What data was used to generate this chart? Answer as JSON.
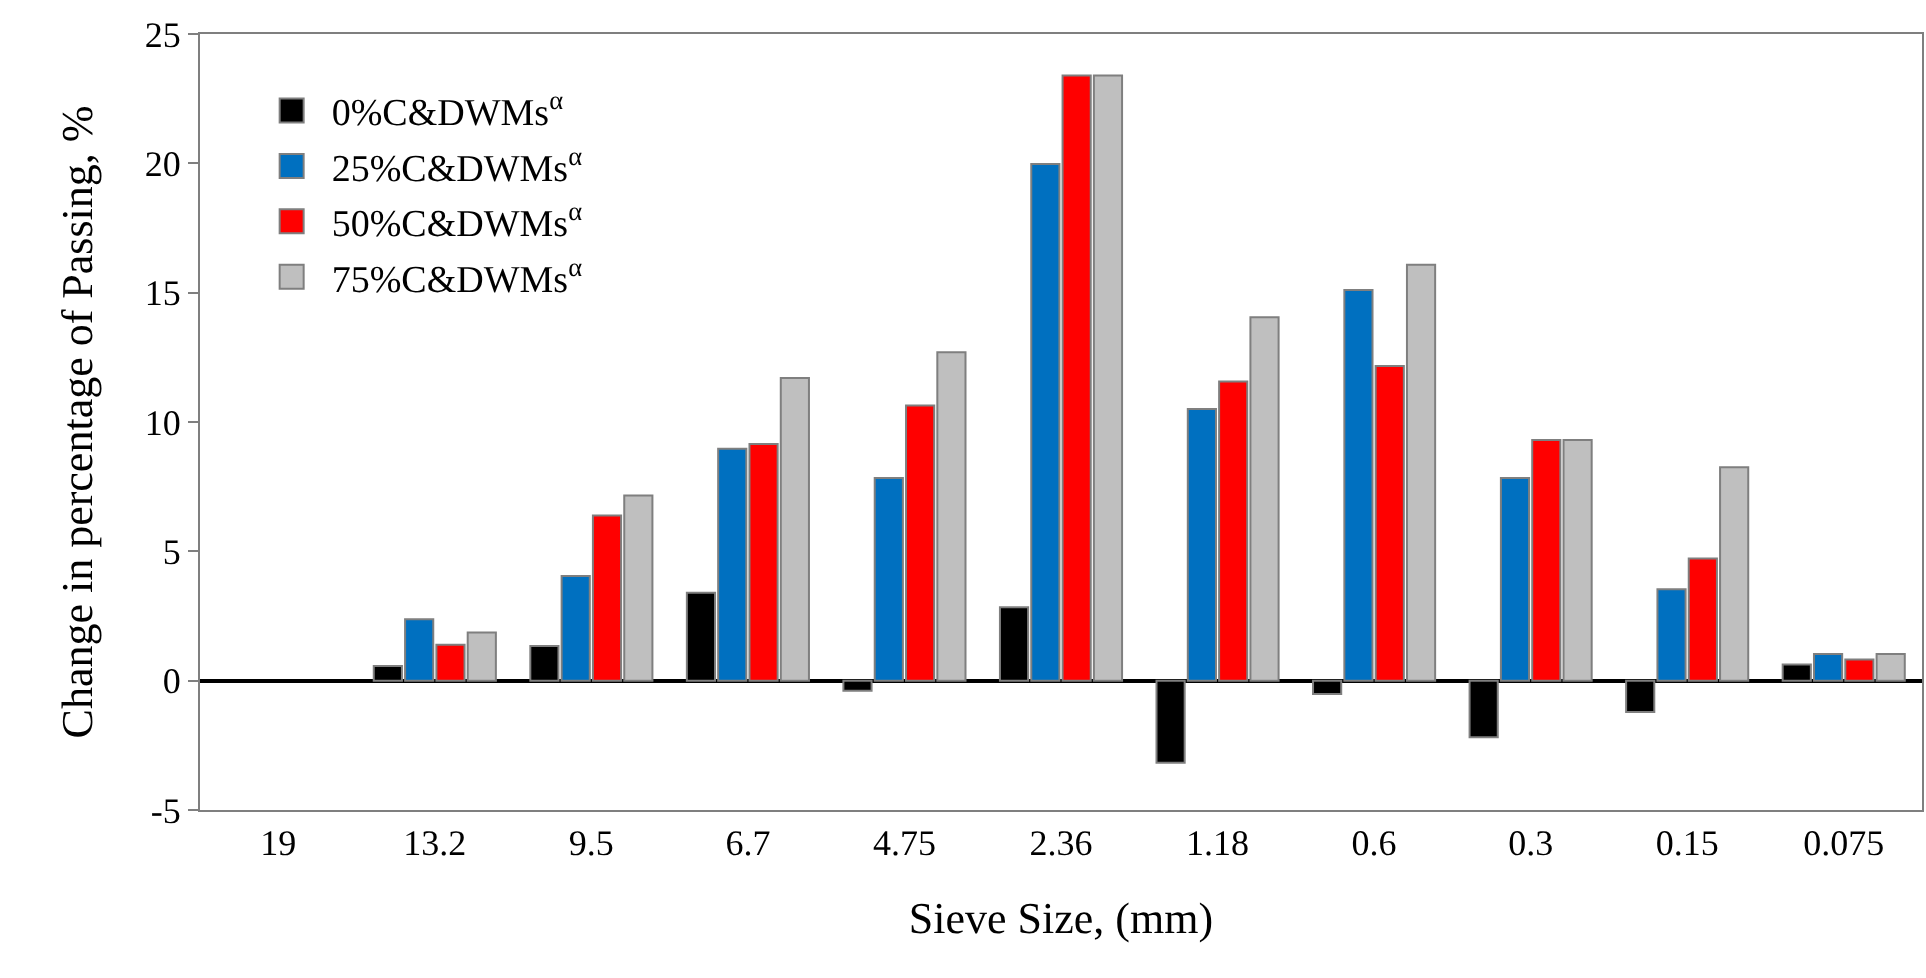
{
  "chart_data": {
    "type": "bar",
    "xlabel": "Sieve Size, (mm)",
    "ylabel": "Change in percentage of Passing, %",
    "categories": [
      "19",
      "13.2",
      "9.5",
      "6.7",
      "4.75",
      "2.36",
      "1.18",
      "0.6",
      "0.3",
      "0.15",
      "0.075"
    ],
    "series": [
      {
        "name": "0%C&DWMs$^{α}$",
        "color": "#000000",
        "values": [
          null,
          0.57,
          1.34,
          3.4,
          -0.39,
          2.84,
          -3.17,
          -0.52,
          -2.19,
          -1.21,
          0.62
        ]
      },
      {
        "name": "25%C&DWMs$^{α}$",
        "color": "#0070c0",
        "values": [
          null,
          2.37,
          4.05,
          8.97,
          7.84,
          19.97,
          10.5,
          15.1,
          7.84,
          3.53,
          1.03
        ]
      },
      {
        "name": "50%C&DWMs$^{α}$",
        "color": "#ff0000",
        "values": [
          null,
          1.39,
          6.39,
          9.15,
          10.64,
          23.4,
          11.57,
          12.16,
          9.3,
          4.72,
          0.82
        ]
      },
      {
        "name": "75%C&DWMs$^{α}$",
        "color": "#bfbfbf",
        "values": [
          null,
          1.86,
          7.16,
          11.7,
          12.7,
          23.4,
          14.05,
          16.08,
          9.3,
          8.25,
          1.03
        ]
      }
    ],
    "ylim": [
      -5,
      25
    ],
    "yticks": [
      -5,
      0,
      5,
      10,
      15,
      20,
      25
    ],
    "legend": "top left"
  }
}
